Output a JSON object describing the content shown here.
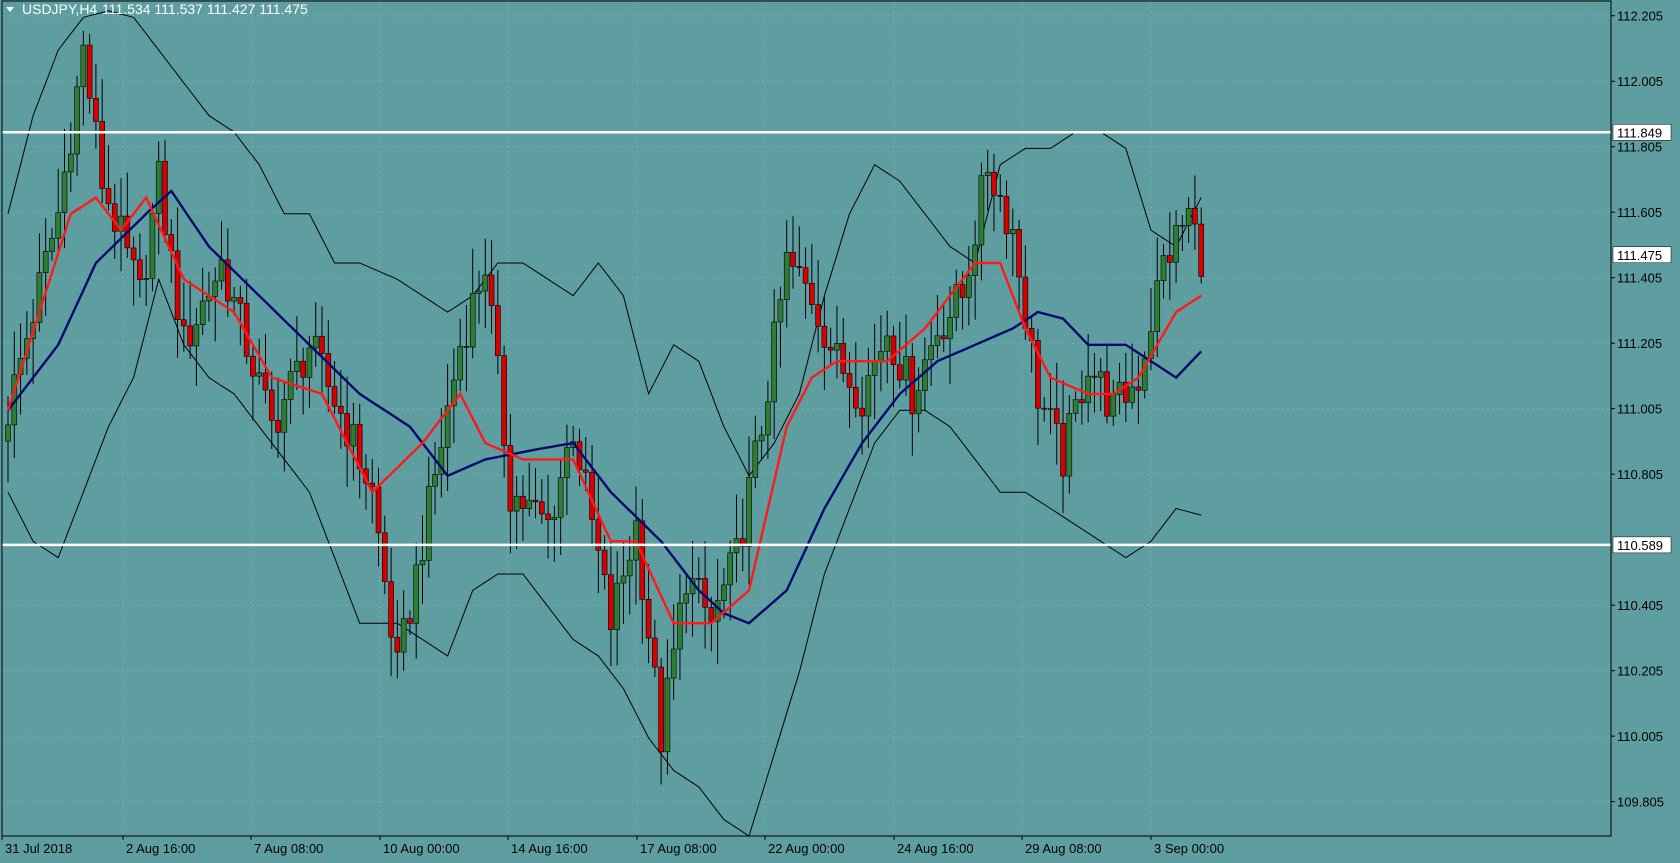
{
  "header": {
    "symbol": "USDJPY,H4",
    "ohlc": "111.534 111.537 111.427 111.475"
  },
  "colors": {
    "background": "#5f9ea0",
    "bull_candle": "#2e7d32",
    "bear_candle": "#d50000",
    "wick": "#000000",
    "ma_fast": "#ff1a1a",
    "ma_slow": "#0a0a6e",
    "bollinger": "#000000",
    "hline": "#ffffff",
    "grid": "#6fb0b2"
  },
  "chart_data": {
    "type": "candlestick",
    "ylim": [
      109.7,
      112.25
    ],
    "grid": true,
    "y_ticks": [
      "112.205",
      "112.005",
      "111.805",
      "111.605",
      "111.405",
      "111.205",
      "111.005",
      "110.805",
      "110.405",
      "110.205",
      "110.005",
      "109.805"
    ],
    "x_ticks": [
      "31 Jul 2018",
      "2 Aug 16:00",
      "7 Aug 08:00",
      "10 Aug 00:00",
      "14 Aug 16:00",
      "17 Aug 08:00",
      "22 Aug 00:00",
      "24 Aug 16:00",
      "29 Aug 08:00",
      "3 Sep 00:00"
    ],
    "current_price": "111.475",
    "horizontal_lines": [
      {
        "label": "111.849",
        "value": 111.849
      },
      {
        "label": "110.589",
        "value": 110.589
      }
    ],
    "anchors": {
      "close": [
        [
          0,
          111.0
        ],
        [
          8,
          111.6
        ],
        [
          12,
          112.1
        ],
        [
          15,
          111.7
        ],
        [
          21,
          111.35
        ],
        [
          24,
          111.7
        ],
        [
          28,
          111.2
        ],
        [
          34,
          111.45
        ],
        [
          42,
          110.95
        ],
        [
          48,
          111.2
        ],
        [
          54,
          110.95
        ],
        [
          58,
          110.75
        ],
        [
          62,
          110.2
        ],
        [
          68,
          110.8
        ],
        [
          72,
          111.2
        ],
        [
          76,
          111.45
        ],
        [
          80,
          110.75
        ],
        [
          86,
          110.65
        ],
        [
          90,
          110.95
        ],
        [
          96,
          110.35
        ],
        [
          100,
          110.65
        ],
        [
          104,
          110.0
        ],
        [
          108,
          110.5
        ],
        [
          112,
          110.35
        ],
        [
          116,
          110.55
        ],
        [
          120,
          110.95
        ],
        [
          124,
          111.45
        ],
        [
          128,
          111.35
        ],
        [
          132,
          111.15
        ],
        [
          136,
          111.05
        ],
        [
          140,
          111.25
        ],
        [
          144,
          111.05
        ],
        [
          148,
          111.25
        ],
        [
          152,
          111.35
        ],
        [
          156,
          111.75
        ],
        [
          160,
          111.55
        ],
        [
          164,
          111.05
        ],
        [
          168,
          110.85
        ],
        [
          172,
          111.15
        ],
        [
          176,
          111.0
        ],
        [
          180,
          111.1
        ],
        [
          184,
          111.45
        ],
        [
          188,
          111.6
        ],
        [
          190,
          111.475
        ]
      ],
      "ma_fast": [
        [
          0,
          111.0
        ],
        [
          10,
          111.6
        ],
        [
          14,
          111.65
        ],
        [
          18,
          111.55
        ],
        [
          22,
          111.65
        ],
        [
          28,
          111.4
        ],
        [
          36,
          111.3
        ],
        [
          42,
          111.1
        ],
        [
          50,
          111.05
        ],
        [
          58,
          110.75
        ],
        [
          66,
          110.9
        ],
        [
          72,
          111.05
        ],
        [
          76,
          110.9
        ],
        [
          82,
          110.85
        ],
        [
          90,
          110.85
        ],
        [
          96,
          110.6
        ],
        [
          100,
          110.6
        ],
        [
          106,
          110.35
        ],
        [
          112,
          110.35
        ],
        [
          118,
          110.45
        ],
        [
          124,
          110.95
        ],
        [
          128,
          111.1
        ],
        [
          132,
          111.15
        ],
        [
          136,
          111.15
        ],
        [
          140,
          111.15
        ],
        [
          146,
          111.25
        ],
        [
          150,
          111.35
        ],
        [
          154,
          111.45
        ],
        [
          158,
          111.45
        ],
        [
          162,
          111.25
        ],
        [
          166,
          111.1
        ],
        [
          172,
          111.05
        ],
        [
          176,
          111.05
        ],
        [
          180,
          111.1
        ],
        [
          186,
          111.3
        ],
        [
          190,
          111.35
        ]
      ],
      "ma_slow": [
        [
          0,
          111.0
        ],
        [
          8,
          111.2
        ],
        [
          14,
          111.45
        ],
        [
          22,
          111.6
        ],
        [
          26,
          111.67
        ],
        [
          32,
          111.5
        ],
        [
          40,
          111.35
        ],
        [
          48,
          111.2
        ],
        [
          56,
          111.05
        ],
        [
          64,
          110.95
        ],
        [
          70,
          110.8
        ],
        [
          76,
          110.85
        ],
        [
          84,
          110.88
        ],
        [
          90,
          110.9
        ],
        [
          96,
          110.75
        ],
        [
          104,
          110.6
        ],
        [
          110,
          110.45
        ],
        [
          114,
          110.38
        ],
        [
          118,
          110.35
        ],
        [
          124,
          110.45
        ],
        [
          130,
          110.7
        ],
        [
          136,
          110.9
        ],
        [
          142,
          111.05
        ],
        [
          148,
          111.15
        ],
        [
          154,
          111.2
        ],
        [
          160,
          111.25
        ],
        [
          164,
          111.3
        ],
        [
          168,
          111.28
        ],
        [
          172,
          111.2
        ],
        [
          178,
          111.2
        ],
        [
          182,
          111.15
        ],
        [
          186,
          111.1
        ],
        [
          190,
          111.18
        ]
      ],
      "bb_upper": [
        [
          0,
          111.6
        ],
        [
          4,
          111.9
        ],
        [
          8,
          112.1
        ],
        [
          12,
          112.2
        ],
        [
          16,
          112.22
        ],
        [
          20,
          112.2
        ],
        [
          24,
          112.1
        ],
        [
          28,
          112.0
        ],
        [
          32,
          111.9
        ],
        [
          36,
          111.85
        ],
        [
          40,
          111.75
        ],
        [
          44,
          111.6
        ],
        [
          48,
          111.6
        ],
        [
          52,
          111.45
        ],
        [
          56,
          111.45
        ],
        [
          62,
          111.4
        ],
        [
          66,
          111.35
        ],
        [
          70,
          111.3
        ],
        [
          74,
          111.35
        ],
        [
          78,
          111.45
        ],
        [
          82,
          111.45
        ],
        [
          86,
          111.4
        ],
        [
          90,
          111.35
        ],
        [
          94,
          111.45
        ],
        [
          98,
          111.35
        ],
        [
          102,
          111.05
        ],
        [
          106,
          111.2
        ],
        [
          110,
          111.15
        ],
        [
          114,
          110.95
        ],
        [
          118,
          110.8
        ],
        [
          122,
          110.9
        ],
        [
          126,
          111.05
        ],
        [
          130,
          111.35
        ],
        [
          134,
          111.6
        ],
        [
          138,
          111.75
        ],
        [
          142,
          111.7
        ],
        [
          146,
          111.6
        ],
        [
          150,
          111.5
        ],
        [
          154,
          111.45
        ],
        [
          158,
          111.75
        ],
        [
          162,
          111.8
        ],
        [
          166,
          111.8
        ],
        [
          170,
          111.85
        ],
        [
          174,
          111.85
        ],
        [
          178,
          111.8
        ],
        [
          182,
          111.55
        ],
        [
          186,
          111.5
        ],
        [
          190,
          111.65
        ]
      ],
      "bb_lower": [
        [
          0,
          110.75
        ],
        [
          4,
          110.6
        ],
        [
          8,
          110.55
        ],
        [
          12,
          110.75
        ],
        [
          16,
          110.95
        ],
        [
          20,
          111.1
        ],
        [
          24,
          111.4
        ],
        [
          28,
          111.2
        ],
        [
          32,
          111.1
        ],
        [
          36,
          111.05
        ],
        [
          40,
          110.95
        ],
        [
          44,
          110.85
        ],
        [
          48,
          110.75
        ],
        [
          52,
          110.55
        ],
        [
          56,
          110.35
        ],
        [
          62,
          110.35
        ],
        [
          66,
          110.3
        ],
        [
          70,
          110.25
        ],
        [
          74,
          110.45
        ],
        [
          78,
          110.5
        ],
        [
          82,
          110.5
        ],
        [
          86,
          110.4
        ],
        [
          90,
          110.3
        ],
        [
          94,
          110.25
        ],
        [
          98,
          110.15
        ],
        [
          102,
          110.0
        ],
        [
          106,
          109.9
        ],
        [
          110,
          109.85
        ],
        [
          114,
          109.75
        ],
        [
          118,
          109.7
        ],
        [
          122,
          109.95
        ],
        [
          126,
          110.2
        ],
        [
          130,
          110.5
        ],
        [
          134,
          110.7
        ],
        [
          138,
          110.9
        ],
        [
          142,
          111.0
        ],
        [
          146,
          111.0
        ],
        [
          150,
          110.95
        ],
        [
          154,
          110.85
        ],
        [
          158,
          110.75
        ],
        [
          162,
          110.75
        ],
        [
          166,
          110.7
        ],
        [
          170,
          110.65
        ],
        [
          174,
          110.6
        ],
        [
          178,
          110.55
        ],
        [
          182,
          110.6
        ],
        [
          186,
          110.7
        ],
        [
          190,
          110.68
        ]
      ]
    }
  }
}
